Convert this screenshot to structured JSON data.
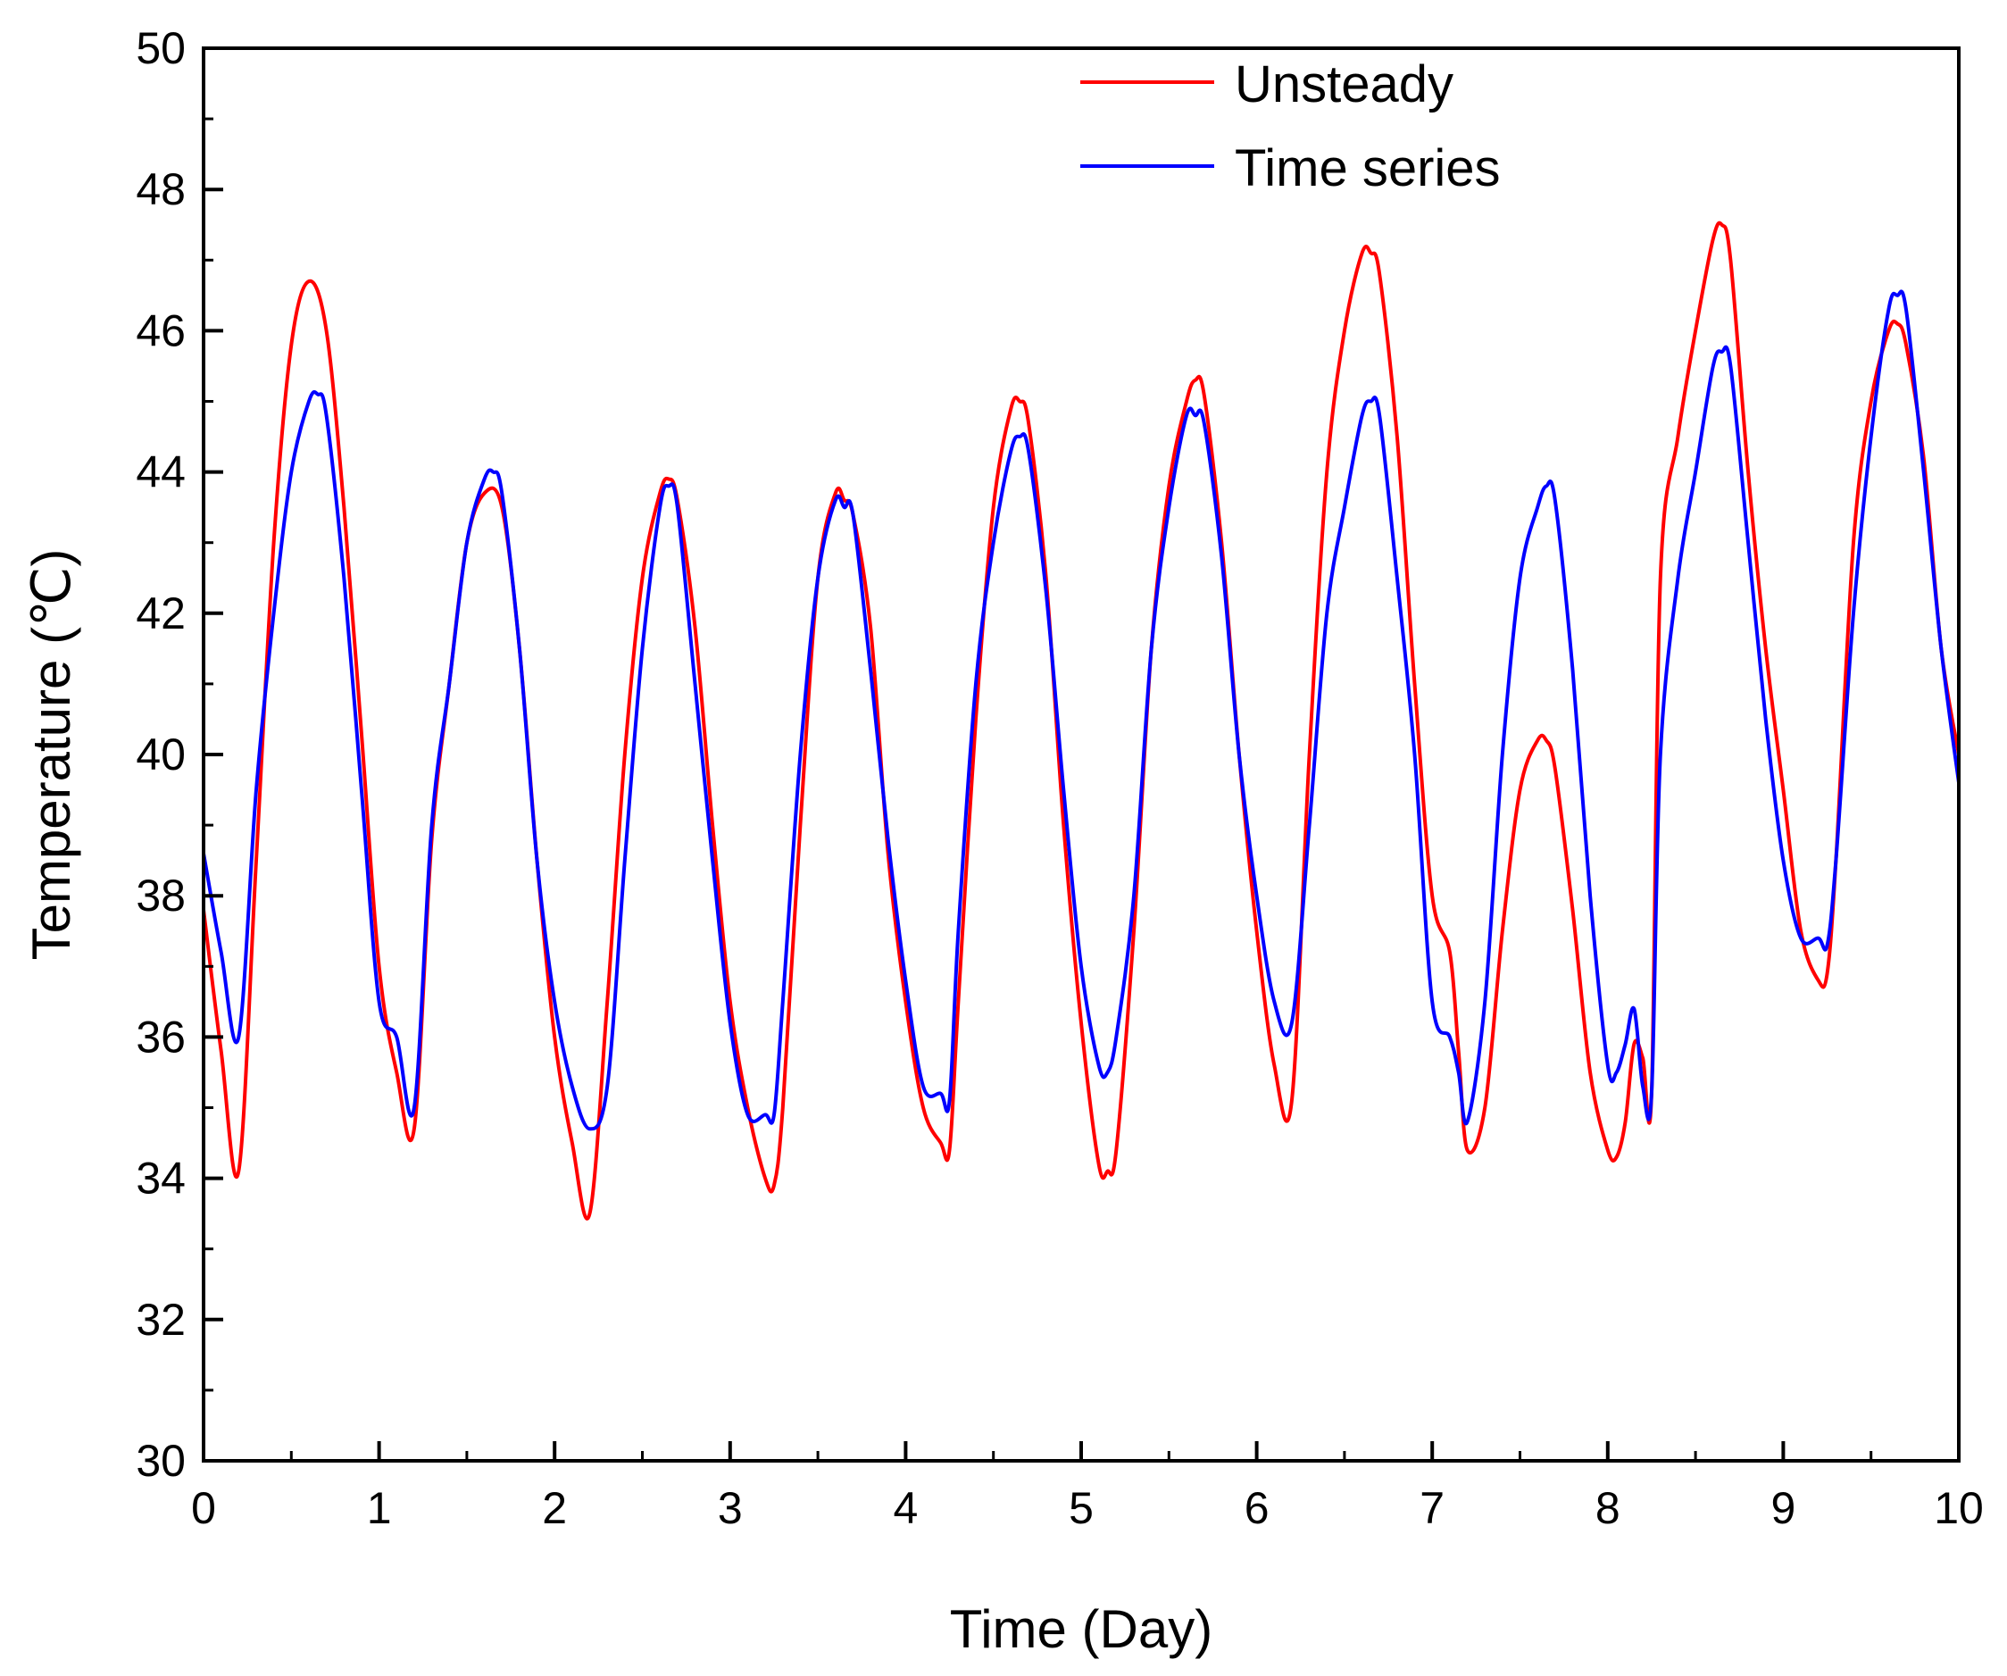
{
  "chart_data": {
    "type": "line",
    "title": "",
    "xlabel": "Time (Day)",
    "ylabel": "Temperature (℃)",
    "xlim": [
      0,
      10
    ],
    "ylim": [
      30,
      50
    ],
    "xticks": [
      0,
      1,
      2,
      3,
      4,
      5,
      6,
      7,
      8,
      9,
      10
    ],
    "yticks": [
      30,
      32,
      34,
      36,
      38,
      40,
      42,
      44,
      46,
      48,
      50
    ],
    "xtick_labels": [
      "0",
      "1",
      "2",
      "3",
      "4",
      "5",
      "6",
      "7",
      "8",
      "9",
      "10"
    ],
    "ytick_labels": [
      "30",
      "32",
      "34",
      "36",
      "38",
      "40",
      "42",
      "44",
      "46",
      "48",
      "50"
    ],
    "grid": false,
    "legend_position": "top-right",
    "series": [
      {
        "name": "Unsteady",
        "color": "#ff0000",
        "x": [
          0,
          0.1,
          0.2,
          0.3,
          0.4,
          0.5,
          0.6,
          0.7,
          0.8,
          0.9,
          1.0,
          1.1,
          1.2,
          1.3,
          1.4,
          1.5,
          1.6,
          1.7,
          1.8,
          1.9,
          2.0,
          2.1,
          2.2,
          2.3,
          2.4,
          2.5,
          2.6,
          2.65,
          2.7,
          2.8,
          2.9,
          3.0,
          3.1,
          3.2,
          3.25,
          3.3,
          3.4,
          3.5,
          3.6,
          3.65,
          3.7,
          3.8,
          3.9,
          4.0,
          4.1,
          4.2,
          4.25,
          4.3,
          4.4,
          4.5,
          4.6,
          4.65,
          4.7,
          4.8,
          4.9,
          5.0,
          5.1,
          5.15,
          5.2,
          5.3,
          5.4,
          5.5,
          5.6,
          5.65,
          5.7,
          5.8,
          5.9,
          6.0,
          6.1,
          6.2,
          6.3,
          6.4,
          6.5,
          6.6,
          6.65,
          6.7,
          6.8,
          6.9,
          7.0,
          7.1,
          7.15,
          7.2,
          7.3,
          7.4,
          7.5,
          7.6,
          7.65,
          7.7,
          7.8,
          7.9,
          8.0,
          8.05,
          8.1,
          8.15,
          8.2,
          8.25,
          8.3,
          8.4,
          8.5,
          8.6,
          8.65,
          8.7,
          8.8,
          8.9,
          9.0,
          9.1,
          9.2,
          9.25,
          9.3,
          9.4,
          9.5,
          9.6,
          9.65,
          9.7,
          9.8,
          9.9,
          10.0
        ],
        "y": [
          37.8,
          35.8,
          34.1,
          38.5,
          43.0,
          45.8,
          46.7,
          46.0,
          43.5,
          40.3,
          37.0,
          35.5,
          34.7,
          38.8,
          41.0,
          43.0,
          43.7,
          43.5,
          41.5,
          38.5,
          36.0,
          34.5,
          33.5,
          36.5,
          40.0,
          42.5,
          43.7,
          43.9,
          43.6,
          41.8,
          39.0,
          36.5,
          35.0,
          34.0,
          33.9,
          35.0,
          39.0,
          42.5,
          43.7,
          43.6,
          43.4,
          41.8,
          38.6,
          36.5,
          35.0,
          34.5,
          34.4,
          36.5,
          40.5,
          43.5,
          44.9,
          45.0,
          44.7,
          42.5,
          39.0,
          36.2,
          34.2,
          34.1,
          34.4,
          37.5,
          41.5,
          43.8,
          45.0,
          45.3,
          45.1,
          43.0,
          40.0,
          37.5,
          35.6,
          35.1,
          40.0,
          44.0,
          46.0,
          47.1,
          47.1,
          46.8,
          44.5,
          41.0,
          38.0,
          37.2,
          35.8,
          34.4,
          35.0,
          37.5,
          39.5,
          40.2,
          40.2,
          39.8,
          37.8,
          35.5,
          34.4,
          34.3,
          34.8,
          35.9,
          35.7,
          35.2,
          42.5,
          44.5,
          46.0,
          47.3,
          47.5,
          47.0,
          44.0,
          41.5,
          39.5,
          37.5,
          36.8,
          36.9,
          38.5,
          43.0,
          45.0,
          46.0,
          46.1,
          45.8,
          44.2,
          41.5,
          40.0
        ]
      },
      {
        "name": "Time series",
        "color": "#0000ff",
        "x": [
          0,
          0.1,
          0.2,
          0.3,
          0.4,
          0.5,
          0.6,
          0.65,
          0.7,
          0.8,
          0.9,
          1.0,
          1.1,
          1.2,
          1.3,
          1.4,
          1.5,
          1.6,
          1.65,
          1.7,
          1.8,
          1.9,
          2.0,
          2.1,
          2.2,
          2.3,
          2.4,
          2.5,
          2.6,
          2.65,
          2.7,
          2.8,
          2.9,
          3.0,
          3.1,
          3.2,
          3.25,
          3.3,
          3.4,
          3.5,
          3.6,
          3.65,
          3.7,
          3.8,
          3.9,
          4.0,
          4.1,
          4.2,
          4.25,
          4.3,
          4.4,
          4.5,
          4.6,
          4.65,
          4.7,
          4.8,
          4.9,
          5.0,
          5.1,
          5.15,
          5.2,
          5.3,
          5.4,
          5.5,
          5.6,
          5.65,
          5.7,
          5.8,
          5.9,
          6.0,
          6.1,
          6.2,
          6.3,
          6.4,
          6.5,
          6.6,
          6.65,
          6.7,
          6.8,
          6.9,
          7.0,
          7.1,
          7.15,
          7.2,
          7.3,
          7.4,
          7.5,
          7.6,
          7.65,
          7.7,
          7.8,
          7.9,
          8.0,
          8.05,
          8.1,
          8.15,
          8.2,
          8.25,
          8.3,
          8.4,
          8.5,
          8.6,
          8.65,
          8.7,
          8.8,
          8.9,
          9.0,
          9.1,
          9.2,
          9.25,
          9.3,
          9.4,
          9.5,
          9.6,
          9.65,
          9.7,
          9.8,
          9.9,
          10.0
        ],
        "y": [
          38.6,
          37.2,
          36.0,
          39.5,
          42.0,
          44.0,
          45.0,
          45.1,
          44.8,
          42.5,
          39.5,
          36.5,
          36.0,
          35.0,
          39.0,
          41.0,
          43.0,
          43.9,
          44.0,
          43.7,
          41.5,
          38.5,
          36.5,
          35.3,
          34.7,
          35.3,
          38.5,
          41.5,
          43.5,
          43.8,
          43.5,
          41.0,
          38.5,
          36.2,
          34.9,
          34.9,
          34.9,
          36.5,
          40.0,
          42.5,
          43.6,
          43.5,
          43.4,
          41.2,
          38.8,
          36.8,
          35.3,
          35.2,
          35.1,
          37.5,
          41.0,
          43.0,
          44.3,
          44.5,
          44.3,
          42.3,
          39.5,
          37.0,
          35.6,
          35.5,
          36.0,
          38.0,
          41.5,
          43.5,
          44.8,
          44.8,
          44.7,
          42.8,
          40.0,
          38.0,
          36.5,
          36.2,
          39.0,
          42.0,
          43.5,
          44.8,
          45.0,
          44.8,
          42.5,
          40.0,
          36.5,
          36.0,
          35.5,
          34.8,
          36.5,
          40.0,
          42.5,
          43.5,
          43.8,
          43.6,
          41.2,
          38.0,
          35.6,
          35.5,
          35.9,
          36.4,
          35.3,
          35.2,
          40.0,
          42.5,
          44.0,
          45.5,
          45.7,
          45.5,
          43.0,
          40.5,
          38.5,
          37.4,
          37.4,
          37.3,
          38.5,
          42.0,
          44.5,
          46.3,
          46.5,
          46.3,
          44.0,
          41.5,
          39.6
        ]
      }
    ]
  }
}
